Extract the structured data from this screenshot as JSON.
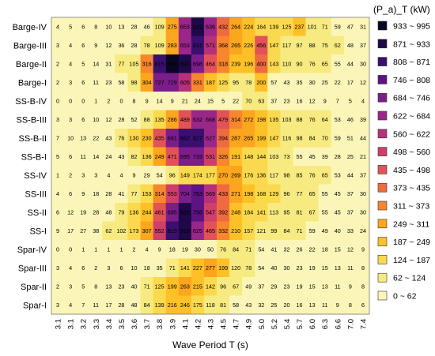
{
  "chart_data": {
    "type": "heatmap",
    "xlabel": "Wave Period T (s)",
    "ylabel": "",
    "legend_title": "(P_a)_T (kW)",
    "rows": [
      "Barge-IV",
      "Barge-III",
      "Barge-II",
      "Barge-I",
      "SS-B-IV",
      "SS-B-III",
      "SS-B-II",
      "SS-B-I",
      "SS-IV",
      "SS-III",
      "SS-II",
      "SS-I",
      "Spar-IV",
      "Spar-III",
      "Spar-II",
      "Spar-I"
    ],
    "columns": [
      "3.1",
      "3.1",
      "3.2",
      "3.3",
      "3.4",
      "3.5",
      "3.6",
      "3.7",
      "3.8",
      "3.9",
      "4.1",
      "4.2",
      "4.3",
      "4.5",
      "4.7",
      "4.9",
      "5.0",
      "5.2",
      "5.4",
      "5.7",
      "6.0",
      "6.3",
      "6.6",
      "7.0",
      "7.4"
    ],
    "values": [
      [
        4,
        5,
        6,
        8,
        10,
        13,
        28,
        46,
        109,
        275,
        653,
        922,
        636,
        432,
        264,
        224,
        164,
        139,
        125,
        237,
        101,
        71,
        59,
        47,
        31
      ],
      [
        3,
        4,
        6,
        9,
        12,
        36,
        28,
        78,
        109,
        283,
        653,
        831,
        571,
        368,
        265,
        226,
        456,
        147,
        117,
        97,
        88,
        75,
        62,
        48,
        37
      ],
      [
        2,
        4,
        5,
        14,
        31,
        77,
        105,
        316,
        815,
        994,
        893,
        698,
        464,
        318,
        239,
        196,
        400,
        143,
        110,
        90,
        76,
        65,
        55,
        44,
        30
      ],
      [
        2,
        3,
        6,
        11,
        23,
        58,
        98,
        304,
        727,
        729,
        605,
        331,
        187,
        125,
        95,
        78,
        200,
        57,
        43,
        35,
        30,
        25,
        22,
        17,
        12
      ],
      [
        0,
        0,
        0,
        1,
        2,
        0,
        8,
        9,
        14,
        9,
        21,
        24,
        15,
        5,
        22,
        70,
        63,
        37,
        23,
        16,
        12,
        9,
        7,
        5,
        4
      ],
      [
        3,
        3,
        6,
        10,
        12,
        28,
        52,
        88,
        135,
        286,
        489,
        632,
        668,
        479,
        314,
        272,
        198,
        135,
        103,
        88,
        76,
        64,
        53,
        46,
        39
      ],
      [
        7,
        10,
        13,
        22,
        43,
        76,
        130,
        230,
        435,
        691,
        862,
        827,
        627,
        394,
        287,
        265,
        199,
        147,
        116,
        98,
        84,
        70,
        59,
        51,
        44
      ],
      [
        5,
        6,
        11,
        14,
        24,
        43,
        82,
        136,
        249,
        471,
        695,
        733,
        531,
        326,
        191,
        148,
        144,
        103,
        73,
        55,
        45,
        39,
        28,
        25,
        21
      ],
      [
        1,
        2,
        3,
        3,
        4,
        4,
        9,
        29,
        54,
        96,
        149,
        174,
        177,
        270,
        269,
        176,
        136,
        117,
        98,
        85,
        76,
        65,
        53,
        44,
        37
      ],
      [
        4,
        6,
        9,
        18,
        28,
        41,
        77,
        153,
        314,
        553,
        704,
        753,
        569,
        433,
        271,
        198,
        168,
        129,
        96,
        77,
        65,
        55,
        45,
        37,
        30
      ],
      [
        6,
        12,
        19,
        28,
        48,
        79,
        136,
        244,
        461,
        695,
        925,
        756,
        547,
        392,
        248,
        184,
        141,
        113,
        95,
        81,
        67,
        55,
        45,
        37,
        30
      ],
      [
        9,
        17,
        27,
        38,
        62,
        102,
        173,
        307,
        552,
        819,
        910,
        625,
        465,
        332,
        210,
        157,
        121,
        99,
        84,
        71,
        59,
        49,
        40,
        33,
        24
      ],
      [
        0,
        0,
        1,
        1,
        1,
        1,
        2,
        4,
        9,
        18,
        19,
        30,
        50,
        76,
        84,
        71,
        54,
        41,
        32,
        26,
        22,
        18,
        15,
        12,
        9
      ],
      [
        3,
        4,
        6,
        2,
        3,
        6,
        10,
        18,
        35,
        71,
        141,
        227,
        277,
        199,
        120,
        78,
        54,
        40,
        30,
        23,
        19,
        15,
        13,
        11,
        8
      ],
      [
        2,
        3,
        5,
        8,
        13,
        23,
        40,
        71,
        125,
        199,
        263,
        215,
        142,
        96,
        67,
        49,
        37,
        29,
        23,
        19,
        15,
        13,
        11,
        9,
        8
      ],
      [
        3,
        4,
        7,
        11,
        17,
        28,
        48,
        84,
        139,
        216,
        246,
        175,
        118,
        81,
        58,
        43,
        32,
        25,
        20,
        16,
        13,
        11,
        9,
        8,
        6
      ]
    ],
    "legend": {
      "bins": [
        {
          "label": "933 ~ 995",
          "color": "#0b0524"
        },
        {
          "label": "871 ~ 933",
          "color": "#1e0848"
        },
        {
          "label": "808 ~ 871",
          "color": "#3b0f70"
        },
        {
          "label": "746 ~ 808",
          "color": "#5d1383"
        },
        {
          "label": "684 ~ 746",
          "color": "#7c1d8c"
        },
        {
          "label": "622 ~ 684",
          "color": "#9a2689"
        },
        {
          "label": "560 ~ 622",
          "color": "#b6307c"
        },
        {
          "label": "498 ~ 560",
          "color": "#cf3f6a"
        },
        {
          "label": "435 ~ 498",
          "color": "#e25256"
        },
        {
          "label": "373 ~ 435",
          "color": "#f06a40"
        },
        {
          "label": "311 ~ 373",
          "color": "#f8862c"
        },
        {
          "label": "249 ~ 311",
          "color": "#fca51e"
        },
        {
          "label": "187 ~ 249",
          "color": "#fdc127"
        },
        {
          "label": "124 ~ 187",
          "color": "#fbd94e"
        },
        {
          "label": "62  ~ 124",
          "color": "#f7ea80"
        },
        {
          "label": "0    ~ 62",
          "color": "#fbf6b8"
        }
      ]
    }
  }
}
